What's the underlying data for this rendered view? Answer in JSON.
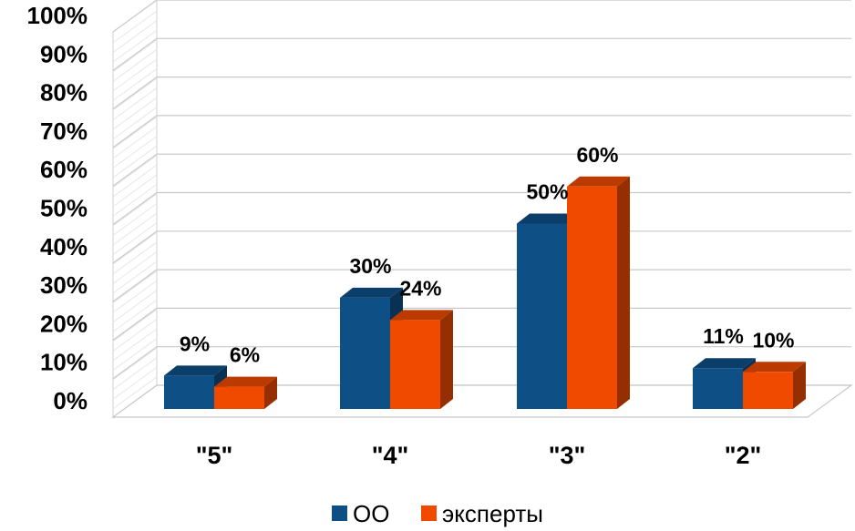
{
  "chart_data": {
    "type": "bar",
    "categories": [
      "\"5\"",
      "\"4\"",
      "\"3\"",
      "\"2\""
    ],
    "series": [
      {
        "name": "ОО",
        "values": [
          9,
          30,
          50,
          11
        ],
        "labels": [
          "9%",
          "30%",
          "50%",
          "11%"
        ],
        "color": "#0e4f86"
      },
      {
        "name": "эксперты",
        "values": [
          6,
          24,
          60,
          10
        ],
        "labels": [
          "6%",
          "24%",
          "60%",
          "10%"
        ],
        "color": "#f04a00"
      }
    ],
    "y_ticks": [
      "0%",
      "10%",
      "20%",
      "30%",
      "40%",
      "50%",
      "60%",
      "70%",
      "80%",
      "90%",
      "100%"
    ],
    "ylim": [
      0,
      100
    ],
    "grid": true,
    "legend": "bottom",
    "title": "",
    "xlabel": "",
    "ylabel": ""
  }
}
